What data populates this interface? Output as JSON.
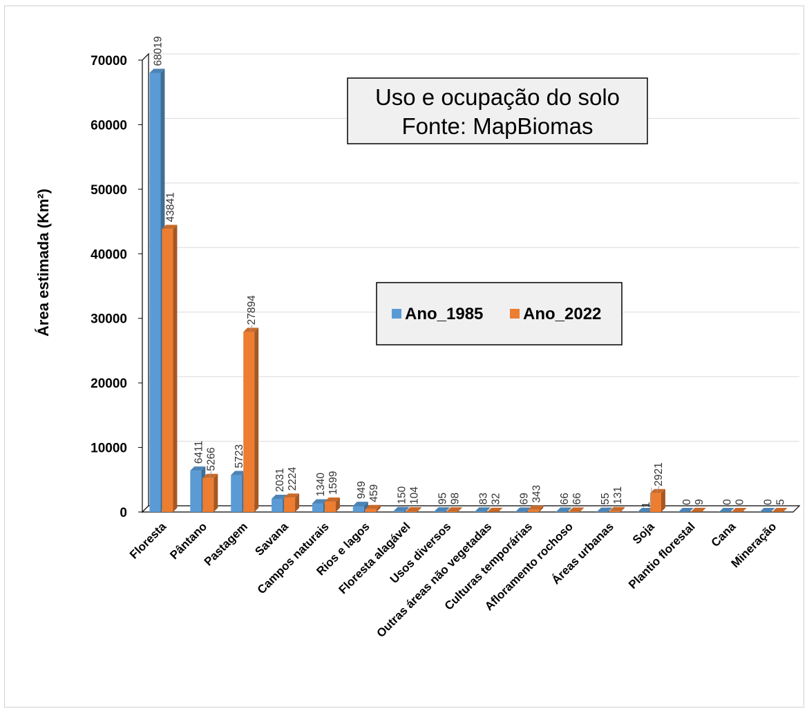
{
  "chart_data": {
    "type": "bar",
    "title": "Uso e ocupação do solo",
    "subtitle": "Fonte: MapBiomas",
    "xlabel": "",
    "ylabel": "Área estimada (Km²)",
    "ylim": [
      0,
      70000
    ],
    "yticks": [
      0,
      10000,
      20000,
      30000,
      40000,
      50000,
      60000,
      70000
    ],
    "grid": true,
    "legend_position": "center",
    "categories": [
      "Floresta",
      "Pântano",
      "Pastagem",
      "Savana",
      "Campos naturais",
      "Rios e lagos",
      "Floresta alagável",
      "Usos diversos",
      "Outras áreas não vegetadas",
      "Culturas temporárias",
      "Afloramento rochoso",
      "Áreas urbanas",
      "Soja",
      "Plantio florestal",
      "Cana",
      "Mineração"
    ],
    "series": [
      {
        "name": "Ano_1985",
        "color": "#5b9bd5",
        "values": [
          68019,
          6411,
          5723,
          2031,
          1340,
          949,
          150,
          95,
          83,
          69,
          66,
          55,
          1,
          0,
          0,
          0
        ]
      },
      {
        "name": "Ano_2022",
        "color": "#ed7d31",
        "values": [
          43841,
          5266,
          27894,
          2224,
          1599,
          459,
          104,
          98,
          32,
          343,
          66,
          131,
          2921,
          9,
          0,
          5
        ]
      }
    ]
  }
}
